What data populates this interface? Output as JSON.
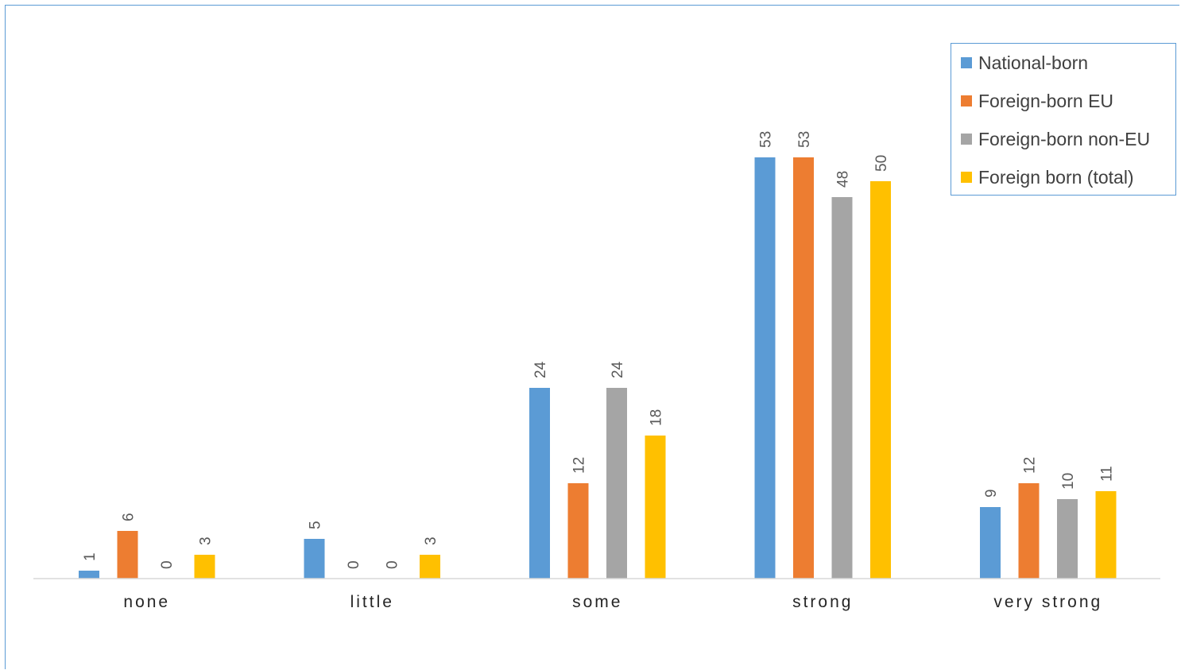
{
  "chart_data": {
    "type": "bar",
    "categories": [
      "none",
      "little",
      "some",
      "strong",
      "very strong"
    ],
    "series": [
      {
        "name": "National-born",
        "color": "#5b9bd5",
        "values": [
          1,
          5,
          24,
          53,
          9
        ]
      },
      {
        "name": "Foreign-born EU",
        "color": "#ed7d31",
        "values": [
          6,
          0,
          12,
          53,
          12
        ]
      },
      {
        "name": "Foreign-born non-EU",
        "color": "#a5a5a5",
        "values": [
          0,
          0,
          24,
          48,
          10
        ]
      },
      {
        "name": "Foreign born (total)",
        "color": "#ffc000",
        "values": [
          3,
          3,
          18,
          50,
          11
        ]
      }
    ],
    "ylim": [
      0,
      55
    ],
    "grid": false,
    "legend_position": "top-right",
    "data_labels": true
  }
}
